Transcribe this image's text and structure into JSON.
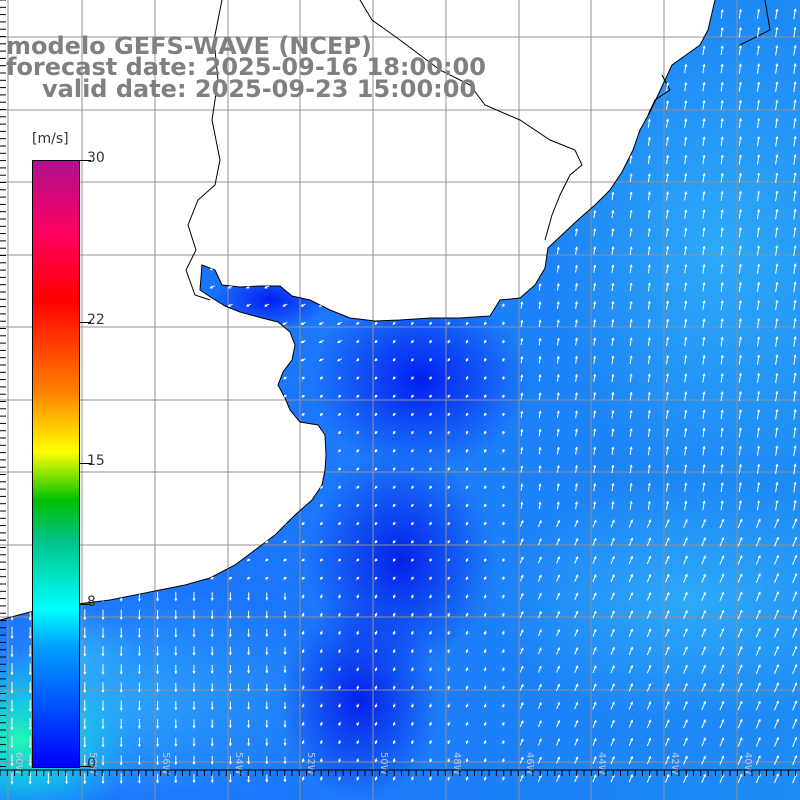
{
  "title": {
    "line1": "modelo GEFS-WAVE (NCEP)",
    "line2": "forecast date: 2025-09-16 18:00:00",
    "line3": "valid date: 2025-09-23 15:00:00"
  },
  "colorbar": {
    "unit": "[m/s]",
    "ticks": [
      {
        "label": "30",
        "value": 30
      },
      {
        "label": "22",
        "value": 22
      },
      {
        "label": "15",
        "value": 15
      },
      {
        "label": "8",
        "value": 8
      },
      {
        "label": "0",
        "value": 0
      }
    ],
    "range": [
      0,
      30
    ]
  },
  "grid_labels": [
    "60W",
    "58W",
    "56W",
    "54W",
    "52W",
    "50W",
    "48W",
    "46W",
    "44W",
    "42W",
    "40W"
  ],
  "colors": {
    "land": "#ffffff",
    "coastline": "#000000",
    "gridline": "#909090",
    "arrow": "#ffffff",
    "title_text": "#808080"
  },
  "field_description": "wind vectors over ocean colored by wind speed"
}
